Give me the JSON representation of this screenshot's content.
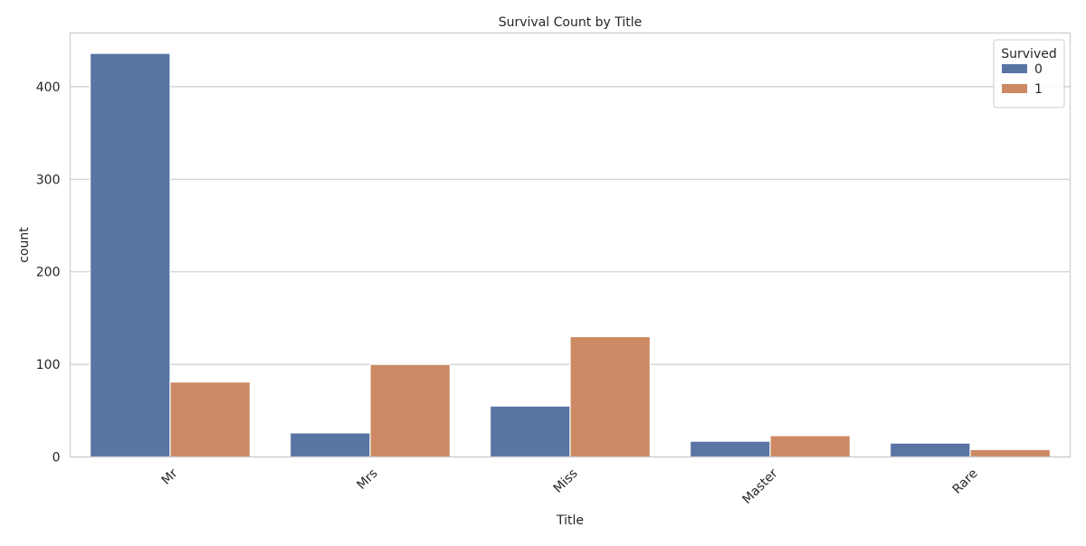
{
  "chart_data": {
    "type": "bar",
    "title": "Survival Count by Title",
    "xlabel": "Title",
    "ylabel": "count",
    "categories": [
      "Mr",
      "Mrs",
      "Miss",
      "Master",
      "Rare"
    ],
    "series": [
      {
        "name": "0",
        "values": [
          436,
          26,
          55,
          17,
          15
        ],
        "color": "#5875a4"
      },
      {
        "name": "1",
        "values": [
          81,
          100,
          130,
          23,
          8
        ],
        "color": "#cc8963"
      }
    ],
    "ylim": [
      0,
      458
    ],
    "yticks": [
      0,
      100,
      200,
      300,
      400
    ],
    "xtick_rotation": 45,
    "grid": "horizontal",
    "legend": {
      "title": "Survived",
      "placement": "top-right"
    }
  }
}
